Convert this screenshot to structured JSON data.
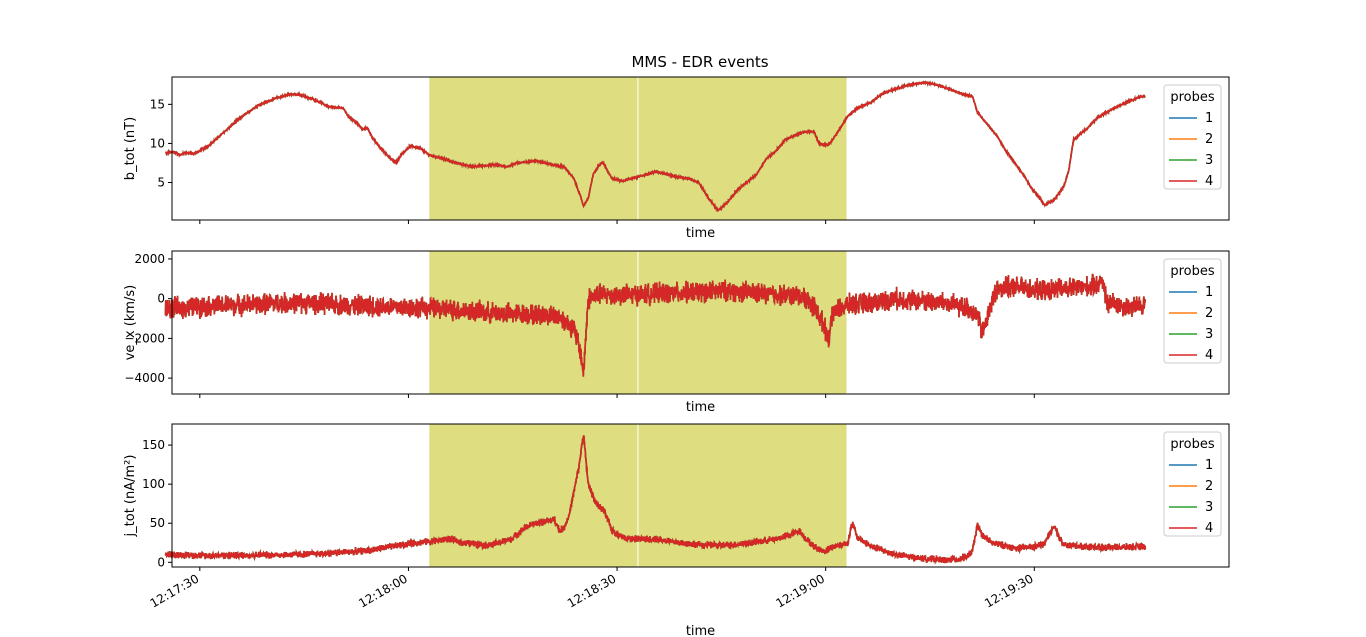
{
  "chart_data": {
    "type": "line",
    "title": "MMS - EDR events",
    "time_ticks": [
      "12:17:30",
      "12:18:00",
      "12:18:30",
      "12:19:00",
      "12:19:30"
    ],
    "time_range": [
      "12:17:26",
      "12:19:58"
    ],
    "highlight_spans": [
      {
        "start": "12:18:03",
        "end": "12:18:33"
      },
      {
        "start": "12:18:33",
        "end": "12:19:03"
      }
    ],
    "highlight_color": "#dede80",
    "legend": {
      "title": "probes",
      "location": "right",
      "entries": [
        "1",
        "2",
        "3",
        "4"
      ]
    },
    "series_colors": [
      "#1f77b4",
      "#ff7f0e",
      "#2ca02c",
      "#d62728"
    ],
    "panels": [
      {
        "id": "b_tot",
        "ylabel": "b_tot (nT)",
        "xlabel": "time",
        "ylim": [
          0.2,
          18.5
        ],
        "yticks": [
          5,
          10,
          15
        ],
        "noise": 0.08,
        "keypoints": [
          [
            3,
            8.8
          ],
          [
            5,
            8.9
          ],
          [
            6,
            8.5
          ],
          [
            7,
            8.8
          ],
          [
            9,
            8.7
          ],
          [
            10,
            9.0
          ],
          [
            12,
            9.7
          ],
          [
            14,
            10.8
          ],
          [
            18,
            13.0
          ],
          [
            22,
            14.8
          ],
          [
            26,
            15.8
          ],
          [
            29,
            16.3
          ],
          [
            31,
            16.2
          ],
          [
            34,
            15.6
          ],
          [
            37,
            14.7
          ],
          [
            40,
            14.5
          ],
          [
            41,
            13.5
          ],
          [
            43,
            12.5
          ],
          [
            44,
            11.8
          ],
          [
            45,
            12.0
          ],
          [
            46,
            10.8
          ],
          [
            48,
            9.2
          ],
          [
            50,
            8.0
          ],
          [
            51,
            7.5
          ],
          [
            52,
            8.5
          ],
          [
            54,
            9.7
          ],
          [
            56,
            9.4
          ],
          [
            58,
            8.5
          ],
          [
            61,
            8.0
          ],
          [
            64,
            7.4
          ],
          [
            67,
            7.0
          ],
          [
            70,
            7.2
          ],
          [
            72,
            7.3
          ],
          [
            74,
            7.0
          ],
          [
            76,
            7.5
          ],
          [
            78,
            7.6
          ],
          [
            80,
            7.8
          ],
          [
            82,
            7.5
          ],
          [
            84,
            7.2
          ],
          [
            86,
            7.0
          ],
          [
            88,
            5.5
          ],
          [
            89.5,
            3.0
          ],
          [
            90,
            2.0
          ],
          [
            91,
            3.0
          ],
          [
            92,
            6.0
          ],
          [
            93,
            7.0
          ],
          [
            94,
            7.6
          ],
          [
            95,
            6.5
          ],
          [
            96,
            5.5
          ],
          [
            98,
            5.2
          ],
          [
            100,
            5.5
          ],
          [
            103,
            6.0
          ],
          [
            105,
            6.4
          ],
          [
            107,
            6.1
          ],
          [
            109,
            5.8
          ],
          [
            112,
            5.5
          ],
          [
            114,
            5.0
          ],
          [
            116,
            3.0
          ],
          [
            118,
            1.4
          ],
          [
            120,
            2.5
          ],
          [
            122,
            4.0
          ],
          [
            124,
            5.0
          ],
          [
            126,
            6.0
          ],
          [
            128,
            8.0
          ],
          [
            130,
            9.0
          ],
          [
            132,
            10.5
          ],
          [
            134,
            11.0
          ],
          [
            136,
            11.5
          ],
          [
            138,
            11.5
          ],
          [
            139,
            10.0
          ],
          [
            141,
            9.8
          ],
          [
            143,
            11.5
          ],
          [
            145,
            13.5
          ],
          [
            147,
            14.5
          ],
          [
            150,
            15.3
          ],
          [
            152,
            16.3
          ],
          [
            155,
            17.0
          ],
          [
            158,
            17.5
          ],
          [
            161,
            17.8
          ],
          [
            163,
            17.6
          ],
          [
            166,
            17.0
          ],
          [
            169,
            16.3
          ],
          [
            171,
            16.0
          ],
          [
            172,
            14.0
          ],
          [
            174,
            12.5
          ],
          [
            176,
            11.0
          ],
          [
            178,
            9.0
          ],
          [
            180,
            7.3
          ],
          [
            182,
            5.6
          ],
          [
            183,
            4.5
          ],
          [
            185,
            3.0
          ],
          [
            186,
            2.1
          ],
          [
            188,
            2.8
          ],
          [
            190,
            4.5
          ],
          [
            191,
            6.5
          ],
          [
            192,
            10.5
          ],
          [
            193,
            11.0
          ],
          [
            195,
            12.0
          ],
          [
            197,
            13.3
          ],
          [
            199,
            14.0
          ],
          [
            201,
            14.7
          ],
          [
            204,
            15.5
          ],
          [
            206,
            16.0
          ],
          [
            207,
            16.0
          ]
        ]
      },
      {
        "id": "ve_x",
        "ylabel": "ve_x (km/s)",
        "xlabel": "time",
        "ylim": [
          -4800,
          2400
        ],
        "yticks": [
          -4000,
          -2000,
          0,
          2000
        ],
        "noise": 420,
        "keypoints": [
          [
            3,
            -500
          ],
          [
            10,
            -400
          ],
          [
            20,
            -300
          ],
          [
            30,
            -200
          ],
          [
            40,
            -300
          ],
          [
            50,
            -400
          ],
          [
            60,
            -500
          ],
          [
            70,
            -700
          ],
          [
            80,
            -800
          ],
          [
            85,
            -900
          ],
          [
            88,
            -1500
          ],
          [
            89.5,
            -2800
          ],
          [
            90,
            -3800
          ],
          [
            90.5,
            -1800
          ],
          [
            91,
            0
          ],
          [
            93,
            200
          ],
          [
            100,
            200
          ],
          [
            110,
            300
          ],
          [
            120,
            400
          ],
          [
            130,
            200
          ],
          [
            136,
            100
          ],
          [
            138,
            -400
          ],
          [
            140,
            -1300
          ],
          [
            141,
            -2000
          ],
          [
            142,
            -700
          ],
          [
            145,
            -300
          ],
          [
            150,
            -200
          ],
          [
            155,
            0
          ],
          [
            160,
            -100
          ],
          [
            165,
            -200
          ],
          [
            170,
            -500
          ],
          [
            172,
            -800
          ],
          [
            173,
            -1800
          ],
          [
            174,
            -1000
          ],
          [
            175,
            -200
          ],
          [
            176,
            500
          ],
          [
            180,
            600
          ],
          [
            185,
            400
          ],
          [
            190,
            500
          ],
          [
            195,
            600
          ],
          [
            197,
            700
          ],
          [
            198,
            1000
          ],
          [
            199,
            -300
          ],
          [
            200,
            -200
          ],
          [
            203,
            -400
          ],
          [
            205,
            -400
          ],
          [
            207,
            -300
          ]
        ]
      },
      {
        "id": "j_tot",
        "ylabel": "j_tot (nA/m²)",
        "xlabel": "time",
        "ylim": [
          -6,
          177
        ],
        "yticks": [
          0,
          50,
          100,
          150
        ],
        "noise": 3.5,
        "keypoints": [
          [
            3,
            10
          ],
          [
            10,
            9
          ],
          [
            20,
            9
          ],
          [
            30,
            10
          ],
          [
            35,
            11
          ],
          [
            40,
            13
          ],
          [
            45,
            15
          ],
          [
            50,
            20
          ],
          [
            55,
            25
          ],
          [
            60,
            28
          ],
          [
            62,
            30
          ],
          [
            65,
            25
          ],
          [
            70,
            22
          ],
          [
            72,
            24
          ],
          [
            75,
            30
          ],
          [
            78,
            45
          ],
          [
            80,
            50
          ],
          [
            82,
            52
          ],
          [
            84,
            55
          ],
          [
            85,
            40
          ],
          [
            86,
            45
          ],
          [
            87,
            60
          ],
          [
            88,
            90
          ],
          [
            89,
            120
          ],
          [
            90,
            165
          ],
          [
            90.5,
            130
          ],
          [
            91,
            100
          ],
          [
            92,
            85
          ],
          [
            93,
            72
          ],
          [
            94,
            68
          ],
          [
            95,
            55
          ],
          [
            96,
            40
          ],
          [
            98,
            33
          ],
          [
            100,
            30
          ],
          [
            105,
            30
          ],
          [
            110,
            25
          ],
          [
            115,
            22
          ],
          [
            120,
            22
          ],
          [
            125,
            25
          ],
          [
            128,
            28
          ],
          [
            130,
            30
          ],
          [
            133,
            35
          ],
          [
            135,
            40
          ],
          [
            136,
            32
          ],
          [
            138,
            20
          ],
          [
            140,
            14
          ],
          [
            142,
            20
          ],
          [
            145,
            25
          ],
          [
            146,
            50
          ],
          [
            147,
            32
          ],
          [
            150,
            20
          ],
          [
            155,
            10
          ],
          [
            160,
            5
          ],
          [
            165,
            3
          ],
          [
            168,
            4
          ],
          [
            170,
            8
          ],
          [
            171,
            15
          ],
          [
            172,
            48
          ],
          [
            173,
            35
          ],
          [
            175,
            25
          ],
          [
            180,
            18
          ],
          [
            184,
            20
          ],
          [
            186,
            24
          ],
          [
            187,
            35
          ],
          [
            188,
            48
          ],
          [
            189,
            32
          ],
          [
            190,
            22
          ],
          [
            195,
            20
          ],
          [
            199,
            19
          ],
          [
            207,
            20
          ]
        ]
      }
    ]
  }
}
